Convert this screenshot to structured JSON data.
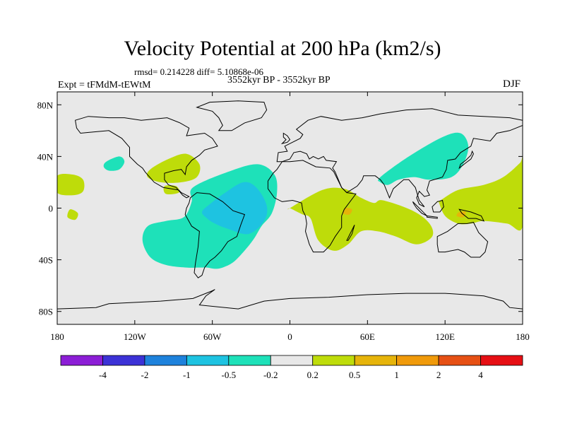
{
  "header": {
    "title": "Velocity Potential at 200 hPa (km2/s)",
    "stats": "rmsd= 0.214228 diff= 5.10868e-06",
    "subtitle": "3552kyr BP - 3552kyr BP",
    "experiment": "Expt = tFMdM-tEWtM",
    "season": "DJF"
  },
  "chart_data": {
    "type": "heatmap",
    "title": "Velocity Potential at 200 hPa (km2/s)",
    "xlabel": "",
    "ylabel": "",
    "xlim": [
      -180,
      180
    ],
    "ylim": [
      -90,
      90
    ],
    "x_ticks": [
      {
        "value": -180,
        "label": "180"
      },
      {
        "value": -120,
        "label": "120W"
      },
      {
        "value": -60,
        "label": "60W"
      },
      {
        "value": 0,
        "label": "0"
      },
      {
        "value": 60,
        "label": "60E"
      },
      {
        "value": 120,
        "label": "120E"
      },
      {
        "value": 180,
        "label": "180"
      }
    ],
    "y_ticks": [
      {
        "value": 80,
        "label": "80N"
      },
      {
        "value": 40,
        "label": "40N"
      },
      {
        "value": 0,
        "label": "0"
      },
      {
        "value": -40,
        "label": "40S"
      },
      {
        "value": -80,
        "label": "80S"
      }
    ],
    "background_color": "#e8e8e8",
    "colorbar": {
      "colors": [
        "#8c1ed6",
        "#3c32d6",
        "#1e82dc",
        "#1ec3e1",
        "#1ee1b9",
        "#e8e8e8",
        "#bedc0a",
        "#e6b40a",
        "#f09a0a",
        "#e65014",
        "#e60f14"
      ],
      "labels": [
        "-4",
        "-2",
        "-1",
        "-0.5",
        "-0.2",
        "0.2",
        "0.5",
        "1",
        "2",
        "4"
      ]
    },
    "regions": [
      {
        "level": "-0.2 to -0.5",
        "color": "#1ee1b9",
        "lon": [
          -75,
          -48,
          -25,
          -12,
          -10,
          -14,
          -22,
          -28,
          -36,
          -44,
          -52,
          -58,
          -64,
          -70,
          -80,
          -96,
          -108,
          -114,
          -110,
          -96,
          -82,
          -76
        ],
        "lat": [
          16,
          28,
          34,
          26,
          12,
          -4,
          -14,
          -24,
          -34,
          -42,
          -46,
          -47,
          -46,
          -46,
          -46,
          -44,
          -38,
          -25,
          -14,
          -10,
          -7,
          5
        ]
      },
      {
        "level": "-0.5 to -1",
        "color": "#1ec3e1",
        "lon": [
          -62,
          -50,
          -36,
          -26,
          -18,
          -20,
          -32,
          -48,
          -58,
          -64,
          -68
        ],
        "lat": [
          3,
          12,
          20,
          16,
          2,
          -10,
          -20,
          -16,
          -12,
          -8,
          -3
        ]
      },
      {
        "level": "-0.2 to -0.5",
        "color": "#1ee1b9",
        "lon": [
          70,
          92,
          118,
          132,
          138,
          134,
          125,
          108,
          96,
          84,
          76,
          70
        ],
        "lat": [
          24,
          40,
          55,
          58,
          48,
          34,
          24,
          22,
          24,
          22,
          18,
          20
        ]
      },
      {
        "level": "-0.2 to -0.5",
        "color": "#1ee1b9",
        "lon": [
          -142,
          -132,
          -128,
          -132,
          -140,
          -144
        ],
        "lat": [
          36,
          40,
          36,
          30,
          29,
          32
        ]
      },
      {
        "level": "0.2 to 0.5",
        "color": "#bedc0a",
        "lon": [
          0,
          25,
          42,
          55,
          65,
          72,
          95,
          108,
          110,
          98,
          82,
          68,
          55,
          45,
          34,
          22,
          16,
          10,
          4,
          0
        ],
        "lat": [
          0,
          14,
          15,
          8,
          4,
          6,
          -2,
          -12,
          -22,
          -28,
          -22,
          -18,
          -18,
          -28,
          -33,
          -25,
          -8,
          -5,
          -2,
          0
        ]
      },
      {
        "level": "0.2 to 0.5",
        "color": "#bedc0a",
        "lon": [
          115,
          130,
          150,
          165,
          178,
          180,
          180,
          168,
          150,
          140,
          130,
          120,
          115
        ],
        "lat": [
          5,
          14,
          18,
          24,
          35,
          38,
          -14,
          -12,
          -10,
          -12,
          -12,
          -6,
          5
        ]
      },
      {
        "level": "0.2 to 0.5",
        "color": "#bedc0a",
        "lon": [
          -180,
          -168,
          -160,
          -160,
          -168,
          -180
        ],
        "lat": [
          25,
          26,
          22,
          13,
          10,
          12
        ]
      },
      {
        "level": "0.2 to 0.5",
        "color": "#bedc0a",
        "lon": [
          -108,
          -94,
          -80,
          -70,
          -72,
          -84,
          -100,
          -110
        ],
        "lat": [
          30,
          38,
          42,
          34,
          24,
          20,
          20,
          24
        ]
      },
      {
        "level": "0.2 to 0.5",
        "color": "#bedc0a",
        "lon": [
          -170,
          -164,
          -166,
          -172
        ],
        "lat": [
          -1,
          -4,
          -9,
          -7
        ]
      },
      {
        "level": "0.2 to 0.5",
        "color": "#bedc0a",
        "lon": [
          -97,
          -88,
          -86,
          -96
        ],
        "lat": [
          17,
          17,
          12,
          11
        ]
      },
      {
        "level": "0.5 to 1",
        "color": "#e6b40a",
        "lon": [
          43,
          48,
          46,
          41
        ],
        "lat": [
          0,
          -1,
          -5,
          -4
        ]
      },
      {
        "level": "0.5 to 1",
        "color": "#e6b40a",
        "lon": [
          131,
          136,
          134,
          129
        ],
        "lat": [
          -3,
          -3,
          -7,
          -6
        ]
      }
    ],
    "grid": false
  }
}
